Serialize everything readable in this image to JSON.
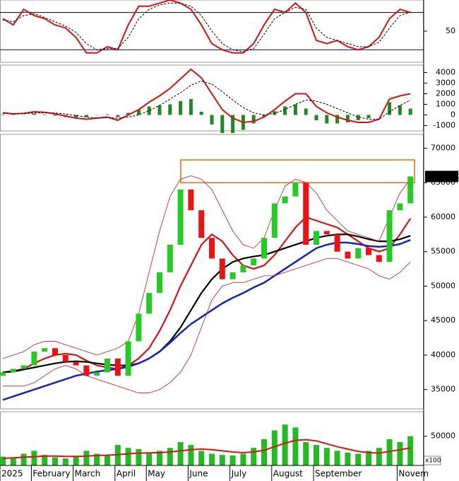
{
  "chart_data": [
    {
      "type": "stochastic",
      "ylim": [
        0,
        100
      ],
      "yticks": [
        50
      ],
      "levels": [
        80,
        20
      ],
      "level_colors": [
        "#000000",
        "#0000cc"
      ],
      "series": [
        {
          "color": "#dd1111",
          "width": 2,
          "dash": false,
          "values": [
            70,
            60,
            85,
            75,
            70,
            60,
            55,
            40,
            15,
            15,
            25,
            20,
            60,
            90,
            90,
            95,
            100,
            95,
            85,
            60,
            30,
            20,
            15,
            15,
            30,
            60,
            85,
            80,
            95,
            80,
            35,
            30,
            35,
            25,
            20,
            25,
            40,
            70,
            85,
            80
          ]
        },
        {
          "color": "#000000",
          "width": 1,
          "dash": true,
          "values": [
            68,
            65,
            75,
            78,
            72,
            65,
            58,
            48,
            30,
            20,
            22,
            22,
            40,
            70,
            85,
            92,
            95,
            95,
            90,
            75,
            50,
            30,
            20,
            17,
            22,
            45,
            70,
            80,
            88,
            85,
            55,
            40,
            35,
            30,
            25,
            25,
            32,
            55,
            75,
            80
          ]
        }
      ]
    },
    {
      "type": "macd",
      "ylim": [
        -1500,
        4700
      ],
      "yticks": [
        -1000,
        0,
        1000,
        2000,
        3000,
        4000
      ],
      "histogram_color": "#228822",
      "histogram": [
        50,
        -30,
        20,
        120,
        50,
        -80,
        -200,
        -250,
        -200,
        -20,
        60,
        -200,
        200,
        500,
        800,
        900,
        1000,
        1300,
        1500,
        300,
        -900,
        -1700,
        -1700,
        -1400,
        -800,
        -200,
        350,
        800,
        1000,
        600,
        -500,
        -800,
        -800,
        -700,
        -500,
        -300,
        0,
        1200,
        900,
        600
      ],
      "series": [
        {
          "color": "#dd1111",
          "width": 2,
          "dash": false,
          "values": [
            200,
            100,
            150,
            300,
            250,
            100,
            -100,
            -300,
            -400,
            -300,
            -200,
            -500,
            0,
            500,
            1200,
            1800,
            2500,
            3400,
            4300,
            3500,
            2000,
            500,
            -300,
            -700,
            -600,
            -200,
            500,
            1300,
            2000,
            2000,
            800,
            200,
            -200,
            -500,
            -700,
            -700,
            -400,
            1500,
            1800,
            2000
          ]
        },
        {
          "color": "#000000",
          "width": 1,
          "dash": true,
          "values": [
            150,
            130,
            130,
            180,
            200,
            180,
            100,
            -50,
            -200,
            -280,
            -260,
            -300,
            -200,
            0,
            400,
            900,
            1500,
            2100,
            2800,
            3200,
            2900,
            2200,
            1400,
            700,
            200,
            0,
            150,
            500,
            1000,
            1400,
            1300,
            1000,
            600,
            200,
            -200,
            -400,
            -400,
            300,
            900,
            1400
          ]
        }
      ]
    },
    {
      "type": "candlestick",
      "ylim": [
        32200,
        72000
      ],
      "yticks": [
        35000,
        40000,
        45000,
        50000,
        55000,
        60000,
        65000,
        70000
      ],
      "up_color": "#22cc22",
      "down_color": "#ee1111",
      "highlight_zone": [
        65000,
        68300
      ],
      "highlight_color": "#ff6600",
      "last_price": {
        "value": 65900,
        "label": "65900.00"
      },
      "open": [
        37000,
        37500,
        38000,
        38500,
        40500,
        41000,
        40000,
        39000,
        38500,
        37000,
        37500,
        39500,
        37000,
        42000,
        46000,
        49000,
        52000,
        56000,
        64000,
        61000,
        57000,
        54000,
        51000,
        52000,
        53000,
        54000,
        57000,
        62000,
        63000,
        65000,
        56000,
        58000,
        57500,
        55000,
        54000,
        55500,
        54500,
        53500,
        61000,
        62000
      ],
      "close": [
        37500,
        38000,
        38500,
        40500,
        41000,
        40000,
        39000,
        38500,
        37000,
        37500,
        39500,
        37000,
        42000,
        46000,
        49000,
        52000,
        56000,
        64000,
        61000,
        57000,
        54000,
        51000,
        52000,
        53000,
        54000,
        57000,
        62000,
        63000,
        65000,
        56000,
        58000,
        57500,
        55000,
        54000,
        55500,
        54500,
        53500,
        61000,
        62000,
        65900
      ],
      "series": [
        {
          "color": "#dd1111",
          "width": 2.2,
          "values": [
            37500,
            37700,
            38000,
            38800,
            39500,
            40000,
            40200,
            40000,
            39200,
            38500,
            38200,
            38000,
            38500,
            39500,
            41000,
            43500,
            46500,
            50000,
            53000,
            56000,
            57500,
            56500,
            54500,
            53000,
            52500,
            53000,
            54500,
            56500,
            58500,
            60000,
            59500,
            59000,
            58500,
            57500,
            56500,
            55500,
            55000,
            55500,
            57500,
            59800
          ]
        },
        {
          "color": "#000000",
          "width": 2.2,
          "values": [
            37500,
            37600,
            37900,
            38200,
            38500,
            38800,
            39000,
            39100,
            39000,
            38800,
            38600,
            38500,
            38500,
            38800,
            39500,
            40500,
            42000,
            44000,
            46500,
            49000,
            51000,
            52500,
            53500,
            54000,
            54300,
            54500,
            55000,
            55500,
            56000,
            56500,
            57000,
            57300,
            57500,
            57500,
            57200,
            56800,
            56500,
            56500,
            56800,
            57300
          ]
        },
        {
          "color": "#1122cc",
          "width": 2.5,
          "values": [
            33500,
            34000,
            34500,
            35000,
            35500,
            36000,
            36500,
            37000,
            37300,
            37600,
            37800,
            38000,
            38300,
            38800,
            39500,
            40500,
            41800,
            43200,
            44500,
            45500,
            46500,
            47500,
            48300,
            49000,
            49800,
            50500,
            51500,
            52500,
            53500,
            54500,
            55500,
            56000,
            56300,
            56300,
            56100,
            55800,
            55700,
            55800,
            56100,
            56700
          ]
        },
        {
          "color": "#dd1111",
          "width": 0.8,
          "values": [
            39500,
            40000,
            40500,
            41500,
            42000,
            42000,
            41500,
            41000,
            40500,
            40000,
            40500,
            41000,
            42000,
            46000,
            52000,
            58000,
            63000,
            65500,
            66000,
            65500,
            64000,
            61000,
            58000,
            56000,
            55500,
            57000,
            61000,
            64500,
            65500,
            65000,
            63500,
            61000,
            59500,
            58000,
            57500,
            57000,
            56500,
            60000,
            63500,
            65500
          ]
        },
        {
          "color": "#dd1111",
          "width": 0.8,
          "values": [
            35500,
            35500,
            35500,
            36000,
            37000,
            38000,
            38500,
            38000,
            37000,
            36500,
            36000,
            35500,
            35000,
            34500,
            34500,
            35000,
            36000,
            37500,
            40000,
            44000,
            48000,
            50000,
            50500,
            50500,
            51000,
            51500,
            51500,
            52000,
            52500,
            53000,
            53500,
            54000,
            54000,
            53500,
            53000,
            52500,
            51500,
            51000,
            52000,
            53500
          ]
        }
      ]
    },
    {
      "type": "volume",
      "ylim": [
        0,
        92000
      ],
      "yticks": [
        50000
      ],
      "unit": "x100",
      "color": "#22bb22",
      "values": [
        15000,
        12000,
        20000,
        25000,
        18000,
        14000,
        12000,
        15000,
        25000,
        20000,
        18000,
        35000,
        30000,
        28000,
        22000,
        25000,
        30000,
        40000,
        35000,
        25000,
        20000,
        18000,
        17000,
        20000,
        30000,
        45000,
        60000,
        70000,
        65000,
        40000,
        35000,
        30000,
        25000,
        22000,
        20000,
        25000,
        30000,
        45000,
        40000,
        50000
      ],
      "series": [
        {
          "color": "#dd1111",
          "width": 2,
          "values": [
            12000,
            13000,
            14000,
            15000,
            16000,
            16000,
            15500,
            15500,
            16000,
            17000,
            17500,
            18500,
            20000,
            21000,
            21500,
            22000,
            23000,
            25000,
            27000,
            28000,
            27000,
            25000,
            23000,
            22000,
            23000,
            26000,
            32000,
            38000,
            43000,
            44000,
            42000,
            37000,
            32000,
            28000,
            24000,
            22000,
            21000,
            24000,
            27000,
            30000
          ]
        }
      ],
      "x": [
        "2025",
        null,
        null,
        "February",
        null,
        null,
        null,
        "March",
        null,
        null,
        null,
        "April",
        null,
        null,
        "May",
        null,
        null,
        null,
        "June",
        null,
        null,
        null,
        "July",
        null,
        null,
        null,
        "August",
        null,
        null,
        null,
        "September",
        null,
        null,
        null,
        null,
        null,
        null,
        null,
        "Novem",
        null
      ]
    }
  ]
}
